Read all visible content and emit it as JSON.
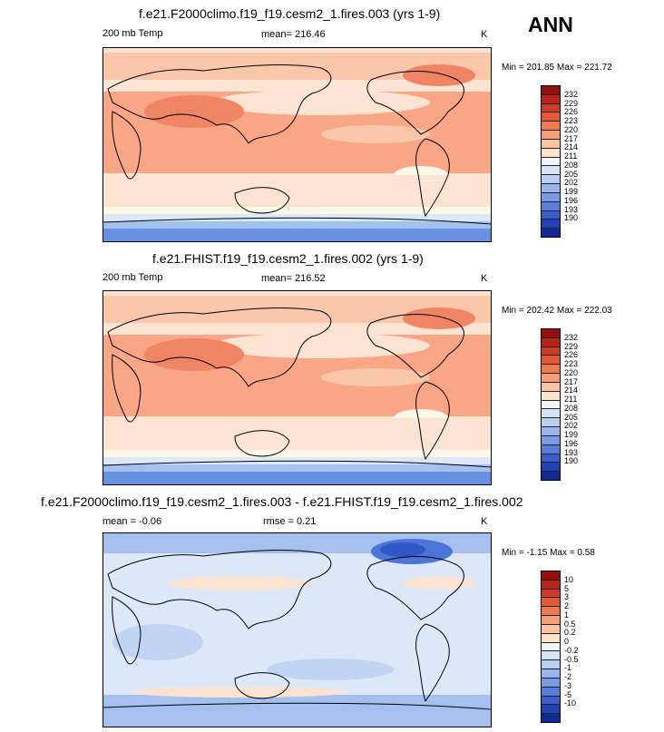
{
  "season": "ANN",
  "colormaps": {
    "temp": [
      "#fff8e8",
      "#fde4d2",
      "#fbc7ab",
      "#f8a686",
      "#f08565",
      "#e36446",
      "#d0472f",
      "#b7301f",
      "#961b12",
      "#860f0b",
      "#dce8f7",
      "#c0d4f3",
      "#a3c0ef",
      "#84a9ea",
      "#6790e2",
      "#4b75d9",
      "#3156c8",
      "#1f3cae",
      "#16299a",
      "#0d1a7d"
    ],
    "diff": [
      "#860f0b",
      "#b7301f",
      "#d0472f",
      "#e36446",
      "#f08565",
      "#f8a686",
      "#fbc7ab",
      "#fde4d2",
      "#fff8e8",
      "#dce8f7",
      "#c0d4f3",
      "#a3c0ef",
      "#84a9ea",
      "#6790e2",
      "#4b75d9",
      "#3156c8",
      "#1f3cae",
      "#0d1a7d"
    ]
  },
  "chart_data": [
    {
      "type": "heatmap",
      "title": "f.e21.F2000climo.f19_f19.cesm2_1.fires.003 (yrs 1-9)",
      "variable": "200 mb Temp",
      "mean_label": "mean= 216.46",
      "units": "K",
      "minmax_label": "Min = 201.85 Max = 221.72",
      "min": 201.85,
      "max": 221.72,
      "mean": 216.46,
      "colorbar_levels": [
        "232",
        "229",
        "226",
        "223",
        "220",
        "217",
        "214",
        "211",
        "208",
        "205",
        "202",
        "199",
        "196",
        "193",
        "190"
      ],
      "colorbar_colors": [
        "#960f0b",
        "#b72419",
        "#d03b26",
        "#e45834",
        "#f07a4d",
        "#f69f77",
        "#fbc3a2",
        "#fde3cc",
        "#f3f3fb",
        "#d7e3f7",
        "#b9cff2",
        "#99b5ec",
        "#7a9ae4",
        "#5a7cda",
        "#3b5ccb",
        "#2142b5",
        "#0e2a98"
      ]
    },
    {
      "type": "heatmap",
      "title": "f.e21.FHIST.f19_f19.cesm2_1.fires.002 (yrs 1-9)",
      "variable": "200 mb Temp",
      "mean_label": "mean= 216.52",
      "units": "K",
      "minmax_label": "Min = 202.42 Max = 222.03",
      "min": 202.42,
      "max": 222.03,
      "mean": 216.52,
      "colorbar_levels": [
        "232",
        "229",
        "226",
        "223",
        "220",
        "217",
        "214",
        "211",
        "208",
        "205",
        "202",
        "199",
        "196",
        "193",
        "190"
      ],
      "colorbar_colors": [
        "#960f0b",
        "#b72419",
        "#d03b26",
        "#e45834",
        "#f07a4d",
        "#f69f77",
        "#fbc3a2",
        "#fde3cc",
        "#f3f3fb",
        "#d7e3f7",
        "#b9cff2",
        "#99b5ec",
        "#7a9ae4",
        "#5a7cda",
        "#3b5ccb",
        "#2142b5",
        "#0e2a98"
      ]
    },
    {
      "type": "heatmap",
      "title": "f.e21.F2000climo.f19_f19.cesm2_1.fires.003 - f.e21.FHIST.f19_f19.cesm2_1.fires.002",
      "mean_label": "mean =  -0.06",
      "rmse_label": "rmse =   0.21",
      "units": "K",
      "minmax_label": "Min = -1.15 Max =  0.58",
      "min": -1.15,
      "max": 0.58,
      "mean": -0.06,
      "rmse": 0.21,
      "colorbar_levels": [
        "10",
        "5",
        "3",
        "2",
        "1",
        "0.5",
        "0.2",
        "0",
        "-0.2",
        "-0.5",
        "-1",
        "-2",
        "-3",
        "-5",
        "-10"
      ],
      "colorbar_colors": [
        "#960f0b",
        "#b72419",
        "#d03b26",
        "#e45834",
        "#f07a4d",
        "#f69f77",
        "#fbc3a2",
        "#fde3cc",
        "#f3f3fb",
        "#d7e3f7",
        "#b9cff2",
        "#99b5ec",
        "#7a9ae4",
        "#5a7cda",
        "#3b5ccb",
        "#2142b5",
        "#0e2a98"
      ]
    }
  ]
}
